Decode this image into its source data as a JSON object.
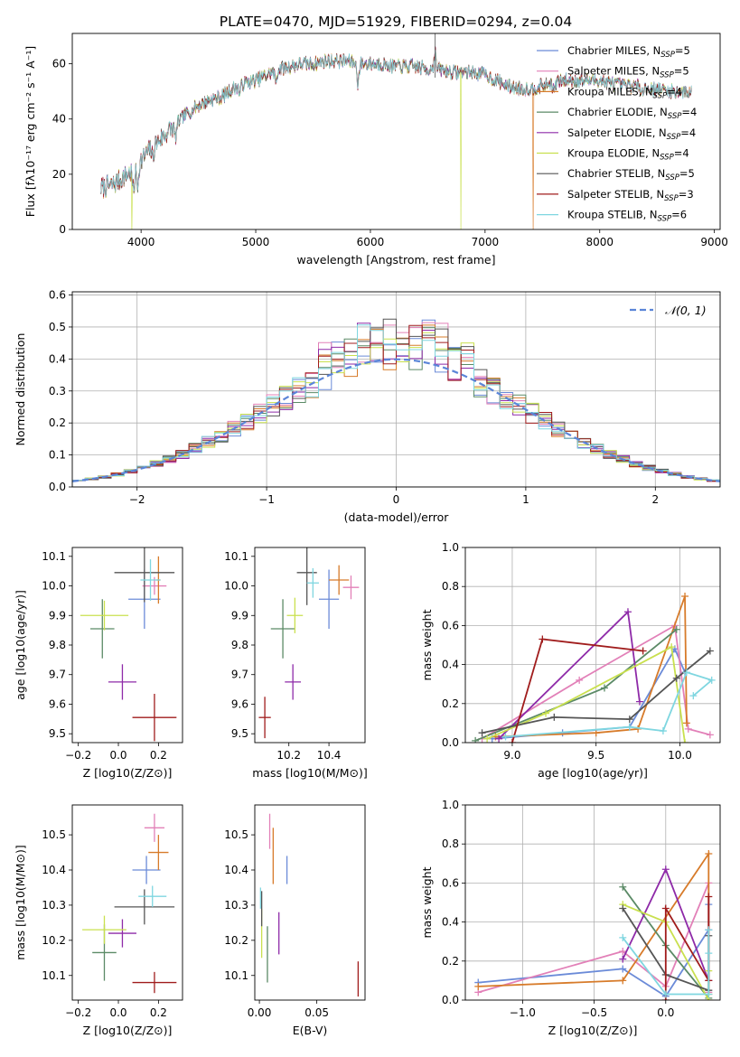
{
  "title": "PLATE=0470, MJD=51929, FIBERID=0294, z=0.04",
  "colors": [
    "#6b8bd8",
    "#e280b8",
    "#d77b2a",
    "#5b8a66",
    "#8e2aa8",
    "#c9e04e",
    "#555555",
    "#a01c1c",
    "#7fd6e0"
  ],
  "chart_data": [
    {
      "id": "spectrum",
      "type": "line",
      "xlabel": "wavelength [Angstrom, rest frame]",
      "ylabel": "Flux [fλ10⁻¹⁷ erg cm⁻² s⁻¹ A⁻¹]",
      "xlim": [
        3400,
        9050
      ],
      "ylim": [
        0,
        71
      ],
      "xticks": [
        "4000",
        "5000",
        "6000",
        "7000",
        "8000",
        "9000"
      ],
      "yticks": [
        "0",
        "20",
        "40",
        "60"
      ],
      "legend": "top-right",
      "legend_entries": [
        "Chabrier MILES, N_SSP=5",
        "Salpeter MILES, N_SSP=5",
        "Kroupa MILES, N_SSP=4",
        "Chabrier ELODIE, N_SSP=4",
        "Salpeter ELODIE, N_SSP=4",
        "Kroupa ELODIE, N_SSP=4",
        "Chabrier STELIB, N_SSP=5",
        "Salpeter STELIB, N_SSP=3",
        "Kroupa STELIB, N_SSP=6"
      ],
      "continuum": {
        "x": [
          3650,
          3750,
          3850,
          3950,
          4000,
          4100,
          4200,
          4300,
          4400,
          4500,
          4600,
          4700,
          4800,
          4900,
          5000,
          5100,
          5200,
          5300,
          5400,
          5500,
          5600,
          5700,
          5800,
          5900,
          6000,
          6100,
          6200,
          6300,
          6400,
          6500,
          6600,
          6700,
          6800,
          6900,
          7000,
          7100,
          7200,
          7300,
          7400,
          7500,
          7600,
          7700,
          7800,
          7900,
          8000,
          8100,
          8200,
          8300,
          8400,
          8500,
          8600,
          8700,
          8800
        ],
        "y": [
          15,
          16,
          19,
          22,
          25,
          30,
          34,
          38,
          42,
          45,
          47,
          48,
          51,
          53,
          54,
          56,
          58,
          59,
          60,
          60,
          61,
          61,
          61,
          60,
          60,
          60,
          59,
          59,
          59,
          58,
          58,
          57,
          57,
          57,
          56,
          54,
          52,
          51,
          51,
          52,
          53,
          54,
          54,
          54,
          54,
          53,
          52,
          52,
          51,
          51,
          50,
          50,
          50
        ]
      },
      "drops": [
        {
          "series": 5,
          "x": 3920
        },
        {
          "series": 5,
          "x": 6790
        },
        {
          "series": 2,
          "x": 7420
        }
      ]
    },
    {
      "id": "residuals",
      "type": "histogram",
      "xlabel": "(data-model)/error",
      "ylabel": "Normed distribution",
      "xlim": [
        -2.5,
        2.5
      ],
      "ylim": [
        0,
        0.61
      ],
      "xticks": [
        "−2",
        "−1",
        "0",
        "1",
        "2"
      ],
      "yticks": [
        "0.0",
        "0.1",
        "0.2",
        "0.3",
        "0.4",
        "0.5",
        "0.6"
      ],
      "bin_width": 0.1,
      "legend": "top-right",
      "legend_entries": [
        "𝒩(0, 1)"
      ],
      "grid": true
    },
    {
      "id": "age-vs-Z",
      "type": "errorbar",
      "xlabel": "Z [log10(Z/Z⊙)]",
      "ylabel": "age  [log10(age/yr)]",
      "xlim": [
        -0.23,
        0.32
      ],
      "ylim": [
        9.47,
        10.13
      ],
      "xticks": [
        "−0.2",
        "0.0",
        "0.2"
      ],
      "yticks": [
        "9.5",
        "9.6",
        "9.7",
        "9.8",
        "9.9",
        "10.0",
        "10.1"
      ],
      "points": [
        {
          "x": 0.13,
          "y": 9.955,
          "xerr": 0.08,
          "yerr": 0.1
        },
        {
          "x": 0.18,
          "y": 10.0,
          "xerr": 0.06,
          "yerr": 0.03
        },
        {
          "x": 0.2,
          "y": 10.02,
          "xerr": 0.01,
          "yerr": 0.08
        },
        {
          "x": -0.08,
          "y": 9.855,
          "xerr": 0.06,
          "yerr": 0.1
        },
        {
          "x": 0.02,
          "y": 9.675,
          "xerr": 0.07,
          "yerr": 0.06
        },
        {
          "x": -0.07,
          "y": 9.9,
          "xerr": 0.12,
          "yerr": 0.05
        },
        {
          "x": 0.13,
          "y": 10.045,
          "xerr": 0.15,
          "yerr": 0.1
        },
        {
          "x": 0.18,
          "y": 9.555,
          "xerr": 0.11,
          "yerr": 0.08
        },
        {
          "x": 0.16,
          "y": 10.02,
          "xerr": 0.05,
          "yerr": 0.07
        }
      ]
    },
    {
      "id": "age-vs-mass",
      "type": "errorbar",
      "xlabel": "mass [log10(M/M⊙)]",
      "ylabel": "",
      "xlim": [
        10.03,
        10.58
      ],
      "ylim": [
        9.47,
        10.13
      ],
      "xticks": [
        "10.2",
        "10.4"
      ],
      "yticks": [
        "9.5",
        "9.6",
        "9.7",
        "9.8",
        "9.9",
        "10.0",
        "10.1"
      ],
      "points": [
        {
          "x": 10.4,
          "y": 9.955,
          "xerr": 0.05,
          "yerr": 0.1
        },
        {
          "x": 10.51,
          "y": 9.995,
          "xerr": 0.04,
          "yerr": 0.04
        },
        {
          "x": 10.45,
          "y": 10.02,
          "xerr": 0.05,
          "yerr": 0.05
        },
        {
          "x": 10.17,
          "y": 9.855,
          "xerr": 0.06,
          "yerr": 0.1
        },
        {
          "x": 10.22,
          "y": 9.675,
          "xerr": 0.04,
          "yerr": 0.06
        },
        {
          "x": 10.23,
          "y": 9.9,
          "xerr": 0.04,
          "yerr": 0.06
        },
        {
          "x": 10.29,
          "y": 10.045,
          "xerr": 0.05,
          "yerr": 0.11
        },
        {
          "x": 10.08,
          "y": 9.555,
          "xerr": 0.03,
          "yerr": 0.07
        },
        {
          "x": 10.32,
          "y": 10.01,
          "xerr": 0.03,
          "yerr": 0.05
        }
      ]
    },
    {
      "id": "weight-vs-age",
      "type": "line",
      "xlabel": "age  [log10(age/yr)]",
      "ylabel": "mass weight",
      "xlim": [
        8.72,
        10.24
      ],
      "ylim": [
        0,
        1.0
      ],
      "xticks": [
        "9.0",
        "9.5",
        "10.0"
      ],
      "yticks": [
        "0.0",
        "0.2",
        "0.4",
        "0.6",
        "0.8",
        "1.0"
      ],
      "grid": true,
      "series": [
        {
          "x": [
            8.88,
            9.3,
            9.7,
            9.97,
            10.03
          ],
          "y": [
            0.02,
            0.05,
            0.08,
            0.48,
            0.36
          ]
        },
        {
          "x": [
            8.82,
            9.4,
            9.97,
            10.05,
            10.18
          ],
          "y": [
            0.02,
            0.32,
            0.6,
            0.07,
            0.04
          ]
        },
        {
          "x": [
            8.9,
            9.5,
            9.75,
            10.03,
            10.04
          ],
          "y": [
            0.03,
            0.05,
            0.07,
            0.75,
            0.1
          ]
        },
        {
          "x": [
            8.78,
            9.55,
            9.98
          ],
          "y": [
            0.01,
            0.28,
            0.58
          ]
        },
        {
          "x": [
            8.92,
            9.69,
            9.76
          ],
          "y": [
            0.02,
            0.67,
            0.21
          ]
        },
        {
          "x": [
            8.85,
            9.2,
            9.95,
            10.03
          ],
          "y": [
            0.02,
            0.15,
            0.49,
            0.0
          ]
        },
        {
          "x": [
            8.82,
            9.25,
            9.7,
            9.98,
            10.18
          ],
          "y": [
            0.05,
            0.13,
            0.12,
            0.33,
            0.47
          ]
        },
        {
          "x": [
            9.0,
            9.18,
            9.78
          ],
          "y": [
            0.0,
            0.53,
            0.47
          ]
        },
        {
          "x": [
            8.96,
            9.7,
            9.9,
            10.04,
            10.19,
            10.08
          ],
          "y": [
            0.03,
            0.08,
            0.06,
            0.36,
            0.32,
            0.24
          ]
        }
      ]
    },
    {
      "id": "mass-vs-Z",
      "type": "errorbar",
      "xlabel": "Z [log10(Z/Z⊙)]",
      "ylabel": "mass [log10(M/M⊙)]",
      "xlim": [
        -0.23,
        0.32
      ],
      "ylim": [
        10.03,
        10.585
      ],
      "xticks": [
        "−0.2",
        "0.0",
        "0.2"
      ],
      "yticks": [
        "10.1",
        "10.2",
        "10.3",
        "10.4",
        "10.5"
      ],
      "points": [
        {
          "x": 0.14,
          "y": 10.4,
          "xerr": 0.07,
          "yerr": 0.04
        },
        {
          "x": 0.18,
          "y": 10.52,
          "xerr": 0.05,
          "yerr": 0.04
        },
        {
          "x": 0.2,
          "y": 10.45,
          "xerr": 0.05,
          "yerr": 0.05
        },
        {
          "x": -0.07,
          "y": 10.165,
          "xerr": 0.06,
          "yerr": 0.08
        },
        {
          "x": 0.02,
          "y": 10.22,
          "xerr": 0.07,
          "yerr": 0.04
        },
        {
          "x": -0.07,
          "y": 10.23,
          "xerr": 0.11,
          "yerr": 0.04
        },
        {
          "x": 0.13,
          "y": 10.295,
          "xerr": 0.15,
          "yerr": 0.05
        },
        {
          "x": 0.18,
          "y": 10.08,
          "xerr": 0.11,
          "yerr": 0.03
        },
        {
          "x": 0.17,
          "y": 10.325,
          "xerr": 0.07,
          "yerr": 0.03
        }
      ]
    },
    {
      "id": "mass-vs-EBV",
      "type": "errorbar",
      "xlabel": "E(B-V)",
      "ylabel": "",
      "xlim": [
        -0.004,
        0.092
      ],
      "ylim": [
        10.03,
        10.585
      ],
      "xticks": [
        "0.00",
        "0.05"
      ],
      "yticks": [
        "10.1",
        "10.2",
        "10.3",
        "10.4",
        "10.5"
      ],
      "points": [
        {
          "x": 0.024,
          "y": 10.4,
          "xerr": 0,
          "yerr": 0.04
        },
        {
          "x": 0.009,
          "y": 10.51,
          "xerr": 0,
          "yerr": 0.05
        },
        {
          "x": 0.012,
          "y": 10.44,
          "xerr": 0,
          "yerr": 0.08
        },
        {
          "x": 0.007,
          "y": 10.16,
          "xerr": 0,
          "yerr": 0.08
        },
        {
          "x": 0.017,
          "y": 10.22,
          "xerr": 0,
          "yerr": 0.06
        },
        {
          "x": 0.002,
          "y": 10.22,
          "xerr": 0,
          "yerr": 0.07
        },
        {
          "x": 0.002,
          "y": 10.29,
          "xerr": 0,
          "yerr": 0.05
        },
        {
          "x": 0.086,
          "y": 10.09,
          "xerr": 0,
          "yerr": 0.05
        },
        {
          "x": 0.001,
          "y": 10.32,
          "xerr": 0,
          "yerr": 0.03
        }
      ]
    },
    {
      "id": "weight-vs-Z",
      "type": "line",
      "xlabel": "Z [log10(Z/Z⊙)]",
      "ylabel": "mass weight",
      "xlim": [
        -1.4,
        0.38
      ],
      "ylim": [
        0,
        1.0
      ],
      "xticks": [
        "−1.0",
        "−0.5",
        "0.0"
      ],
      "yticks": [
        "0.0",
        "0.2",
        "0.4",
        "0.6",
        "0.8",
        "1.0"
      ],
      "grid": true,
      "series": [
        {
          "x": [
            -1.31,
            -0.3,
            0.0,
            0.3,
            0.3
          ],
          "y": [
            0.09,
            0.16,
            0.02,
            0.36,
            0.49
          ]
        },
        {
          "x": [
            -1.31,
            -0.3,
            0.0,
            0.3,
            0.3
          ],
          "y": [
            0.04,
            0.25,
            0.07,
            0.6,
            0.04
          ]
        },
        {
          "x": [
            -1.31,
            -0.3,
            0.3,
            0.3
          ],
          "y": [
            0.07,
            0.1,
            0.75,
            0.03
          ]
        },
        {
          "x": [
            -0.3,
            0.0,
            0.3
          ],
          "y": [
            0.58,
            0.28,
            0.01
          ]
        },
        {
          "x": [
            -0.3,
            0.0,
            0.3
          ],
          "y": [
            0.21,
            0.67,
            0.1
          ]
        },
        {
          "x": [
            -0.3,
            0.0,
            0.3,
            0.3
          ],
          "y": [
            0.49,
            0.4,
            0.0,
            0.15
          ]
        },
        {
          "x": [
            -0.3,
            0.0,
            0.3,
            0.3
          ],
          "y": [
            0.47,
            0.13,
            0.05,
            0.33
          ]
        },
        {
          "x": [
            0.0,
            0.0,
            0.3,
            0.3
          ],
          "y": [
            0.0,
            0.47,
            0.1,
            0.53
          ]
        },
        {
          "x": [
            -0.3,
            0.0,
            0.3,
            0.3,
            0.3
          ],
          "y": [
            0.32,
            0.03,
            0.03,
            0.24,
            0.36
          ]
        }
      ]
    }
  ]
}
